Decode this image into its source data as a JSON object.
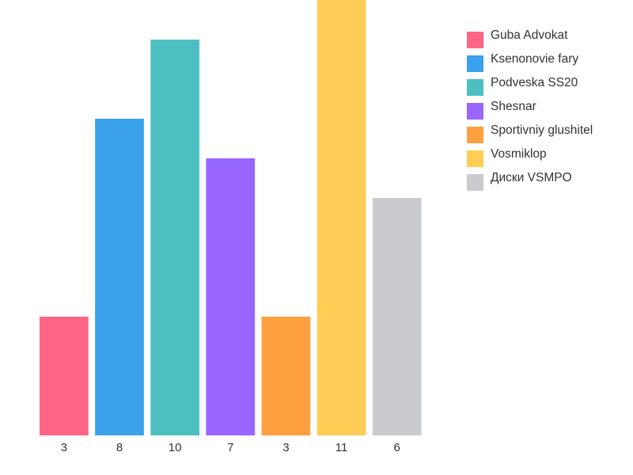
{
  "chart_data": {
    "type": "bar",
    "title": "",
    "xlabel": "",
    "ylabel": "",
    "ylim": [
      0,
      11
    ],
    "grid": false,
    "legend_position": "top-right",
    "categories": [
      "Guba Advokat",
      "Ksenonovie fary",
      "Podveska SS20",
      "Shesnar",
      "Sportivniy glushitel",
      "Vosmiklop",
      "Диски VSMPO"
    ],
    "values": [
      3,
      8,
      10,
      7,
      3,
      11,
      6
    ],
    "value_labels": [
      "3",
      "8",
      "10",
      "7",
      "3",
      "11",
      "6"
    ],
    "colors": [
      "#ff6584",
      "#3aa2eb",
      "#4cc0c0",
      "#9966ff",
      "#ffa040",
      "#ffcd56",
      "#c9cbce"
    ]
  }
}
